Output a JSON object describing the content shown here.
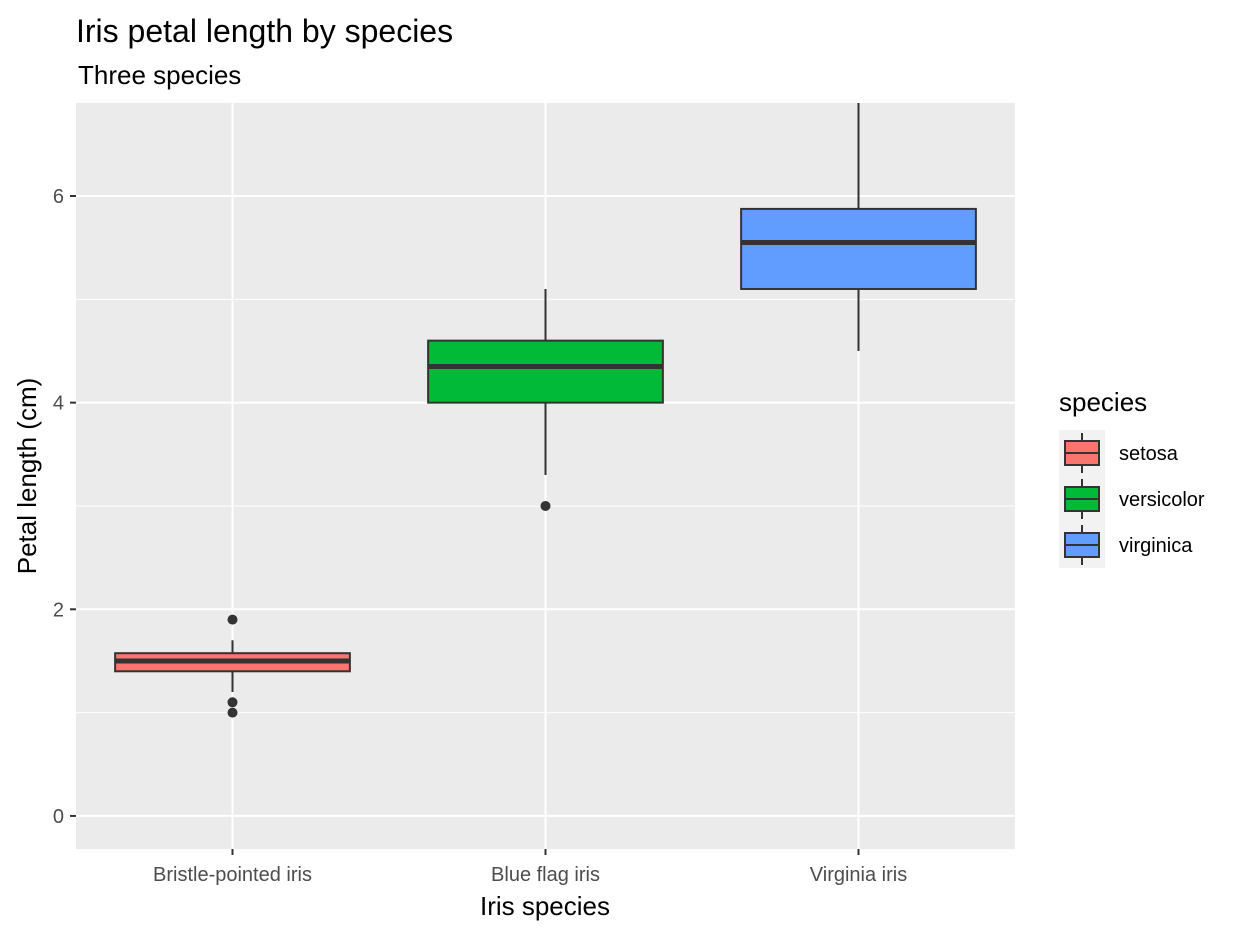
{
  "chart_data": {
    "type": "box",
    "title": "Iris petal length by species",
    "subtitle": "Three species",
    "xlabel": "Iris species",
    "ylabel": "Petal length (cm)",
    "categories": [
      "Bristle-pointed iris",
      "Blue flag iris",
      "Virginia iris"
    ],
    "y_ticks": [
      0,
      2,
      4,
      6
    ],
    "ylim": [
      -0.32,
      6.9
    ],
    "grid": true,
    "legend": {
      "title": "species",
      "position": "right",
      "entries": [
        "setosa",
        "versicolor",
        "virginica"
      ]
    },
    "series": [
      {
        "name": "setosa",
        "category": "Bristle-pointed iris",
        "color": "#F8766D",
        "whisker_low": 1.2,
        "q1": 1.4,
        "median": 1.5,
        "q3": 1.575,
        "whisker_high": 1.7,
        "outliers": [
          1.0,
          1.1,
          1.9
        ]
      },
      {
        "name": "versicolor",
        "category": "Blue flag iris",
        "color": "#00BA38",
        "whisker_low": 3.3,
        "q1": 4.0,
        "median": 4.35,
        "q3": 4.6,
        "whisker_high": 5.1,
        "outliers": [
          3.0
        ]
      },
      {
        "name": "virginica",
        "category": "Virginia iris",
        "color": "#619CFF",
        "whisker_low": 4.5,
        "q1": 5.1,
        "median": 5.55,
        "q3": 5.875,
        "whisker_high": 6.9,
        "outliers": []
      }
    ]
  }
}
